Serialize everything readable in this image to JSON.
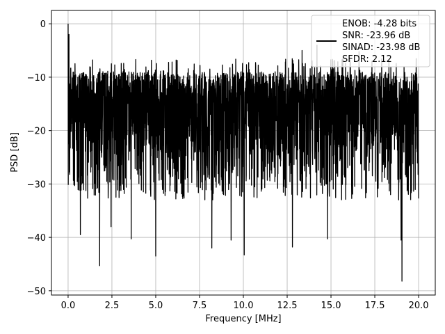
{
  "chart_data": {
    "type": "line",
    "xlabel": "Frequency [MHz]",
    "ylabel": "PSD [dB]",
    "xlim": [
      -0.95,
      20.95
    ],
    "ylim": [
      -50.8,
      2.5
    ],
    "xticks": [
      0.0,
      2.5,
      5.0,
      7.5,
      10.0,
      12.5,
      15.0,
      17.5,
      20.0
    ],
    "xtick_labels": [
      "0.0",
      "2.5",
      "5.0",
      "7.5",
      "10.0",
      "12.5",
      "15.0",
      "17.5",
      "20.0"
    ],
    "yticks": [
      0,
      -10,
      -20,
      -30,
      -40,
      -50
    ],
    "ytick_labels": [
      "0",
      "−10",
      "−20",
      "−30",
      "−40",
      "−50"
    ],
    "grid": true,
    "legend_placement": "top-right",
    "legend_lines": [
      "ENOB: -4.28 bits",
      "SNR: -23.96 dB",
      "SINAD: -23.98 dB",
      "SFDR: 2.12"
    ],
    "series_color": "#000000",
    "series": [
      {
        "description_free": true,
        "x_range": [
          0.0,
          20.0
        ],
        "typical_upper_envelope_db": -9,
        "typical_lower_envelope_db": -24,
        "peak": {
          "x": 0.0,
          "y": 0.0
        },
        "deep_nulls": [
          {
            "x": 0.7,
            "y": -39.5
          },
          {
            "x": 1.8,
            "y": -45.3
          },
          {
            "x": 2.45,
            "y": -38.0
          },
          {
            "x": 3.6,
            "y": -40.3
          },
          {
            "x": 5.0,
            "y": -43.5
          },
          {
            "x": 8.2,
            "y": -42.0
          },
          {
            "x": 9.3,
            "y": -40.5
          },
          {
            "x": 10.05,
            "y": -43.3
          },
          {
            "x": 12.8,
            "y": -41.8
          },
          {
            "x": 14.8,
            "y": -40.3
          },
          {
            "x": 19.05,
            "y": -48.2
          },
          {
            "x": 19.0,
            "y": -40.5
          }
        ],
        "high_spikes": [
          {
            "x": 0.05,
            "y": -2.0
          },
          {
            "x": 13.35,
            "y": -5.0
          },
          {
            "x": 14.2,
            "y": -4.0
          },
          {
            "x": 16.6,
            "y": -5.2
          }
        ]
      }
    ]
  }
}
